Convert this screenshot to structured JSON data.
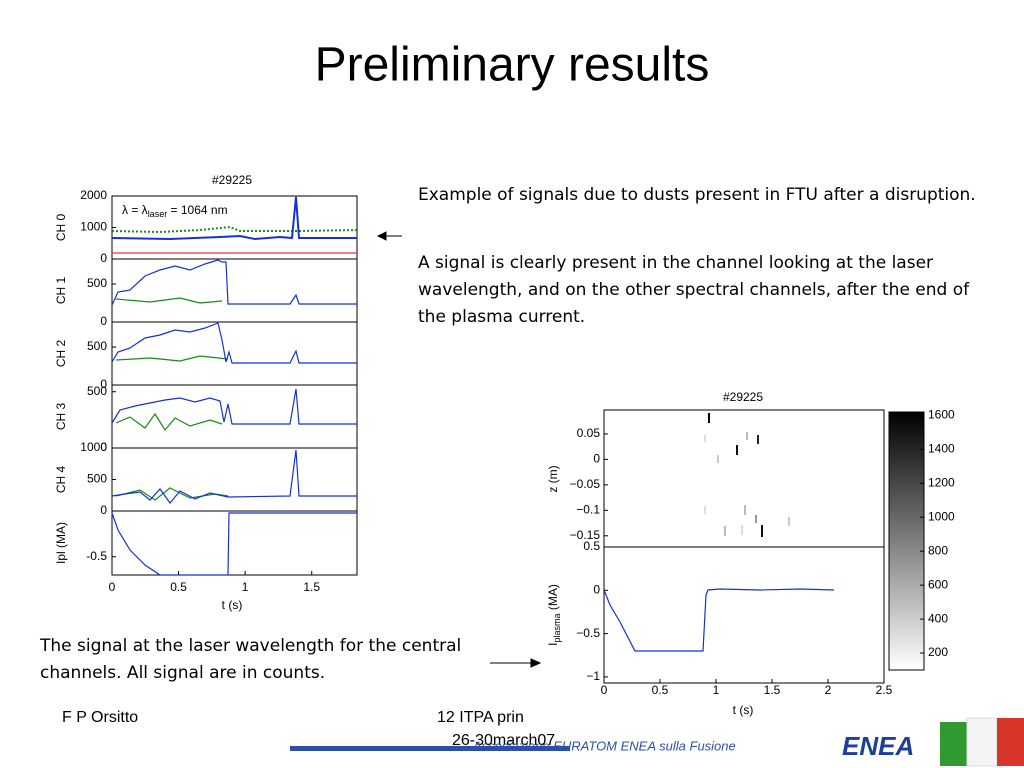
{
  "title": "Preliminary results",
  "notes": [
    "Example of signals due to dusts present in FTU after a disruption.",
    "A signal is clearly present in the channel looking at the laser wavelength, and on the other spectral channels, after the end of the plasma current."
  ],
  "caption": "The signal at the laser wavelength for the central channels. All signal are in counts.",
  "left_figure": {
    "title": "#29225",
    "annotation": [
      "λ = λ",
      "laser",
      " = 1064 nm"
    ],
    "xlabel": "t (s)",
    "xlim": [
      0,
      1.84
    ],
    "xticks": [
      0,
      0.5,
      1,
      1.5
    ],
    "panels": [
      {
        "ylabel": "CH 0",
        "ylim": [
          0,
          2000
        ],
        "yticks": [
          0,
          1000,
          2000
        ]
      },
      {
        "ylabel": "CH 1",
        "ylim": [
          0,
          830
        ],
        "yticks": [
          0,
          500
        ]
      },
      {
        "ylabel": "CH 2",
        "ylim": [
          0,
          830
        ],
        "yticks": [
          0,
          500
        ]
      },
      {
        "ylabel": "CH 3",
        "ylim": [
          0,
          560
        ],
        "yticks": [
          0,
          500
        ]
      },
      {
        "ylabel": "CH 4",
        "ylim": [
          0,
          1000
        ],
        "yticks": [
          0,
          500,
          1000
        ]
      },
      {
        "ylabel": "Ipl (MA)",
        "ylim": [
          -0.7,
          0
        ],
        "yticks": [
          -0.5
        ]
      }
    ]
  },
  "right_figure": {
    "title": "#29225",
    "xlabel": "t (s)",
    "xlim": [
      0,
      2.5
    ],
    "xticks": [
      0,
      0.5,
      1,
      1.5,
      2,
      2.5
    ],
    "top": {
      "ylabel": "z (m)",
      "ylim": [
        -0.172,
        0.097
      ],
      "yticks": [
        0.05,
        0,
        {
          "value": -0.05,
          "label": "−0.05"
        },
        {
          "value": -0.1,
          "label": "−0.1"
        },
        {
          "value": -0.15,
          "label": "−0.15"
        }
      ]
    },
    "bottom": {
      "ylabel": [
        "I",
        "plasma",
        " (MA)"
      ],
      "ylim": [
        -1.07,
        0.5
      ],
      "yticks": [
        0.5,
        0,
        {
          "value": -0.5,
          "label": "−0.5"
        },
        {
          "value": -1,
          "label": "−1"
        }
      ]
    },
    "colorbar": {
      "ylim": [
        100,
        1620
      ],
      "yticks": [
        200,
        400,
        600,
        800,
        1000,
        1200,
        1400,
        1600
      ]
    }
  },
  "footer": {
    "author": "F P Orsitto",
    "event": "12 ITPA prin",
    "date": "26-30march07",
    "association": "Associazione EURATOM ENEA sulla Fusione",
    "logo": "ENEA"
  }
}
